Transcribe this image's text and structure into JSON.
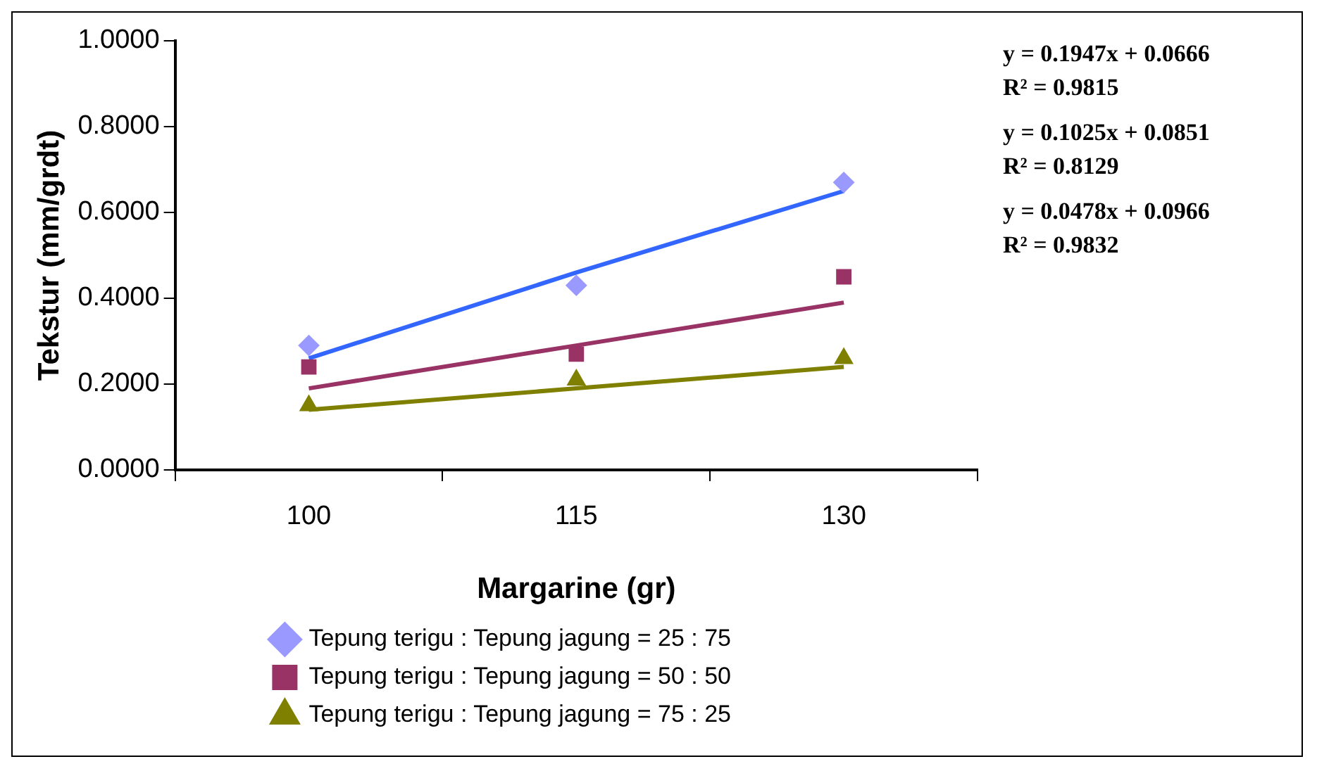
{
  "chart_data": {
    "type": "scatter",
    "xlabel": "Margarine (gr)",
    "ylabel": "Tekstur (mm/grdt)",
    "categories": [
      "100",
      "115",
      "130"
    ],
    "series": [
      {
        "name": "Tepung terigu : Tepung jagung = 25 : 75",
        "color": "#9999ff",
        "marker": "diamond",
        "values": [
          0.29,
          0.43,
          0.67
        ]
      },
      {
        "name": "Tepung terigu : Tepung jagung = 50 : 50",
        "color": "#993366",
        "marker": "square",
        "values": [
          0.24,
          0.27,
          0.45
        ]
      },
      {
        "name": "Tepung terigu : Tepung jagung = 75 : 25",
        "color": "#808000",
        "marker": "triangle",
        "values": [
          0.15,
          0.21,
          0.26
        ]
      },
      {
        "type": "line",
        "color": "#3366ff",
        "marker": "none",
        "line_style": "solid",
        "values": [
          0.26,
          0.46,
          0.65
        ]
      },
      {
        "type": "line",
        "color": "#993366",
        "marker": "none",
        "line_style": "solid",
        "values": [
          0.19,
          0.29,
          0.39
        ]
      },
      {
        "type": "line",
        "color": "#808000",
        "marker": "none",
        "line_style": "solid",
        "values": [
          0.14,
          0.19,
          0.24
        ]
      }
    ],
    "ylim": [
      0,
      1
    ],
    "yticks": [
      {
        "value": 0,
        "label": "0.0000"
      },
      {
        "value": 0.2,
        "label": "0.2000"
      },
      {
        "value": 0.4,
        "label": "0.4000"
      },
      {
        "value": 0.6,
        "label": "0.6000"
      },
      {
        "value": 0.8,
        "label": "0.8000"
      },
      {
        "value": 1,
        "label": "1.0000"
      }
    ],
    "grid": false,
    "legend": "bottom",
    "annotations": [
      "y = 0.1947x + 0.0666",
      "R² = 0.9815",
      "y = 0.1025x + 0.0851",
      "R² = 0.8129",
      "y = 0.0478x + 0.0966",
      "R² = 0.9832"
    ]
  }
}
